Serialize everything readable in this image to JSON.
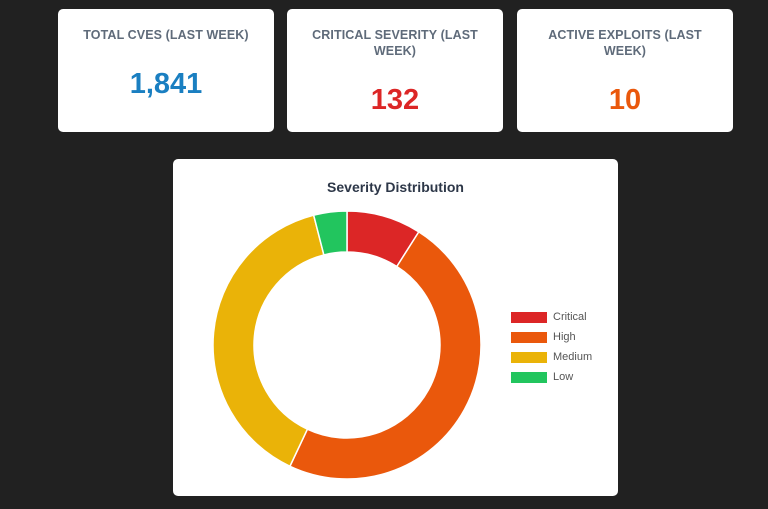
{
  "stats": {
    "total": {
      "label": "TOTAL CVES (LAST WEEK)",
      "value": "1,841",
      "color": "#1a7fc1"
    },
    "critical": {
      "label": "CRITICAL SEVERITY (LAST WEEK)",
      "value": "132",
      "color": "#dc2626"
    },
    "exploits": {
      "label": "ACTIVE EXPLOITS (LAST WEEK)",
      "value": "10",
      "color": "#ea580c"
    }
  },
  "chart_data": {
    "type": "pie",
    "title": "Severity Distribution",
    "categories": [
      "Critical",
      "High",
      "Medium",
      "Low"
    ],
    "values": [
      9,
      48,
      39,
      4
    ],
    "colors": [
      "#dc2626",
      "#ea580c",
      "#eab308",
      "#22c55e"
    ],
    "donut": true,
    "legend_position": "right"
  }
}
